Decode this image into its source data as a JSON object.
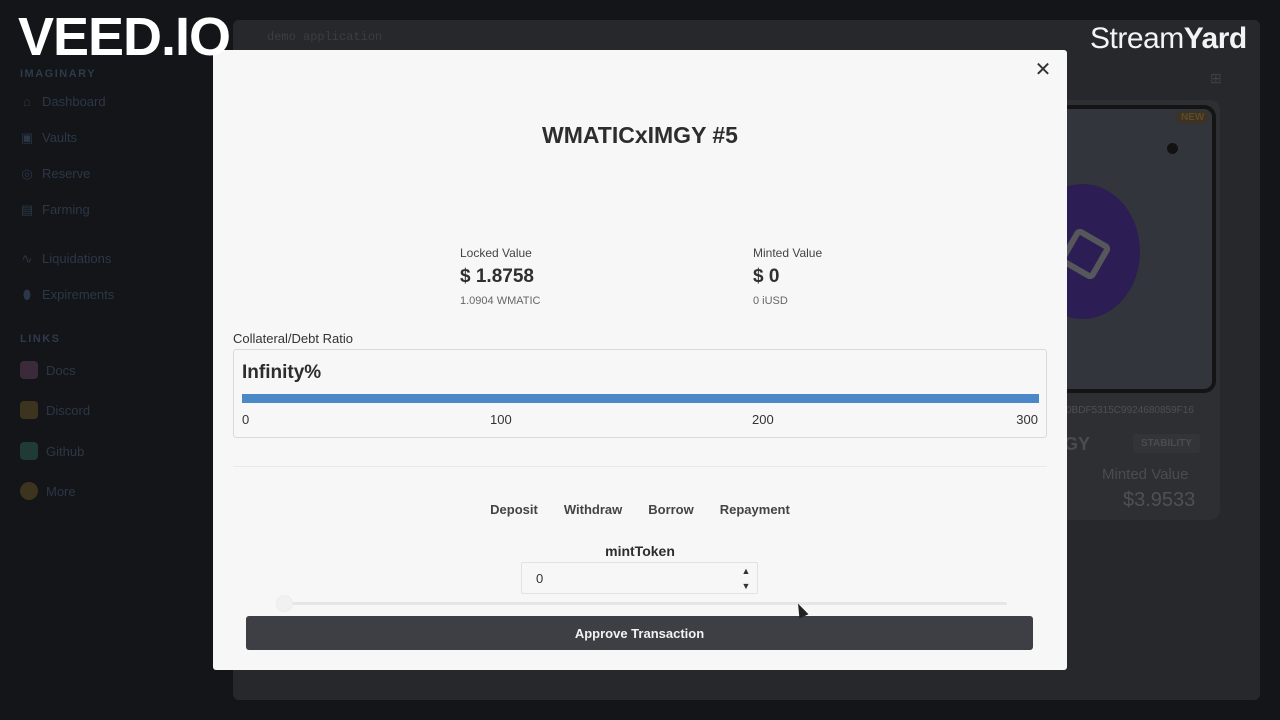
{
  "background": {
    "app_title": "demo application",
    "brand_sub": "...",
    "sidebar": {
      "section1": "IMAGINARY",
      "items": [
        {
          "label": "Dashboard",
          "icon": "dashboard-icon"
        },
        {
          "label": "Vaults",
          "icon": "vault-icon"
        },
        {
          "label": "Reserve",
          "icon": "reserve-icon"
        },
        {
          "label": "Farming",
          "icon": "farming-icon"
        },
        {
          "label": "Liquidations",
          "icon": "activity-icon"
        },
        {
          "label": "Expirements",
          "icon": "pill-icon"
        }
      ],
      "section2": "LINKS",
      "links": [
        {
          "label": "Docs",
          "icon": "books-icon",
          "color": "#3a2a3a"
        },
        {
          "label": "Discord",
          "icon": "wave-icon",
          "color": "#3d3420"
        },
        {
          "label": "Github",
          "icon": "octocat-icon",
          "color": "#203a35"
        },
        {
          "label": "More",
          "icon": "smile-icon",
          "color": "#3d3420"
        }
      ]
    },
    "card": {
      "badge": "NEW",
      "hash": "0BDF5315C9924680859F16",
      "name": "GY",
      "tag": "STABILITY",
      "minted_label": "Minted Value",
      "minted_value": "$3.9533"
    }
  },
  "watermarks": {
    "veed": "VEED.IO",
    "streamyard_a": "Stream",
    "streamyard_b": "Yard"
  },
  "modal": {
    "title": "WMATICxIMGY #5",
    "locked": {
      "label": "Locked Value",
      "value": "$ 1.8758",
      "sub": "1.0904 WMATIC"
    },
    "minted": {
      "label": "Minted Value",
      "value": "$ 0",
      "sub": "0 iUSD"
    },
    "ratio": {
      "label": "Collateral/Debt Ratio",
      "value": "Infinity%",
      "fill_percent": 100,
      "ticks": [
        "0",
        "100",
        "200",
        "300"
      ]
    },
    "tabs": [
      "Deposit",
      "Withdraw",
      "Borrow",
      "Repayment"
    ],
    "mint_label": "mintToken",
    "mint_value": "0",
    "slider_fraction": 0,
    "approve_label": "Approve Transaction",
    "accent": "#4a88c7"
  }
}
